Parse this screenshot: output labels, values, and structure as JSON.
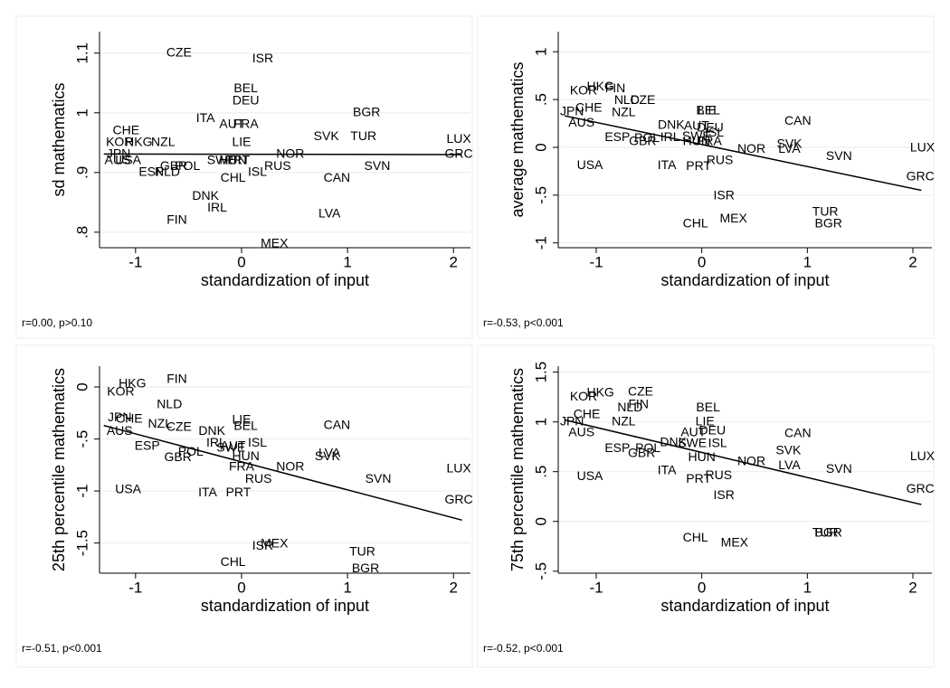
{
  "chart_data": [
    {
      "type": "scatter",
      "xlabel": "standardization of input",
      "ylabel": "sd mathematics",
      "note": "r=0.00, p>0.10",
      "color": "#000000",
      "grid": true,
      "xlim": [
        -1.34,
        2.16
      ],
      "ylim": [
        0.774,
        1.136
      ],
      "xticks": [
        -1,
        0,
        1,
        2
      ],
      "yticks": [
        {
          "value": 0.8,
          "label": ".8"
        },
        {
          "value": 0.9,
          "label": ".9"
        },
        1,
        1.1
      ],
      "labels": [
        "CZE",
        "ISR",
        "BEL",
        "DEU",
        "BGR",
        "ITA",
        "AUT",
        "FRA",
        "CHE",
        "SVK",
        "TUR",
        "LUX",
        "KOR",
        "HKG",
        "NZL",
        "LIE",
        "NOR",
        "GRC",
        "JPN",
        "AUS",
        "USA",
        "SWE",
        "HUN",
        "PRT",
        "RUS",
        "ESP",
        "NLD",
        "POL",
        "GBR",
        "ISL",
        "SVN",
        "CHL",
        "CAN",
        "DNK",
        "IRL",
        "LVA",
        "FIN",
        "MEX"
      ],
      "x": [
        -0.59,
        0.2,
        0.04,
        0.04,
        1.18,
        -0.34,
        -0.09,
        0.04,
        -1.09,
        0.8,
        1.15,
        2.05,
        -1.15,
        -0.97,
        -0.74,
        0,
        0.46,
        2.05,
        -1.16,
        -1.17,
        -1.07,
        -0.19,
        -0.08,
        -0.04,
        0.34,
        -0.85,
        -0.7,
        -0.51,
        -0.64,
        0.15,
        1.28,
        -0.08,
        0.9,
        -0.34,
        -0.23,
        0.83,
        -0.61,
        0.31
      ],
      "y": [
        1.1,
        1.09,
        1.04,
        1.02,
        1.0,
        0.99,
        0.98,
        0.98,
        0.97,
        0.96,
        0.96,
        0.955,
        0.95,
        0.95,
        0.95,
        0.95,
        0.93,
        0.93,
        0.93,
        0.92,
        0.92,
        0.92,
        0.92,
        0.92,
        0.91,
        0.9,
        0.9,
        0.91,
        0.91,
        0.9,
        0.91,
        0.89,
        0.89,
        0.86,
        0.84,
        0.83,
        0.82,
        0.78
      ],
      "fit_x": [
        -1.3,
        2.08
      ],
      "fit_y": [
        0.931,
        0.93
      ]
    },
    {
      "type": "scatter",
      "xlabel": "standardization of input",
      "ylabel": "average mathematics",
      "note": "r=-0.53, p<0.001",
      "color": "#000000",
      "grid": true,
      "xlim": [
        -1.36,
        2.18
      ],
      "ylim": [
        -1.05,
        1.21
      ],
      "xticks": [
        -1,
        0,
        1,
        2
      ],
      "yticks": [
        -1,
        {
          "value": -0.5,
          "label": "-.5"
        },
        0,
        {
          "value": 0.5,
          "label": ".5"
        },
        1
      ],
      "labels": [
        "HKG",
        "FIN",
        "KOR",
        "NLD",
        "CZE",
        "JPN",
        "CHE",
        "AUS",
        "NZL",
        "BEL",
        "LIE",
        "CAN",
        "DNK",
        "AUT",
        "DEU",
        "ISL",
        "ESP",
        "POL",
        "GBR",
        "IRL",
        "SWE",
        "HUN",
        "FRA",
        "NOR",
        "SVK",
        "LVA",
        "LUX",
        "SVN",
        "USA",
        "ITA",
        "PRT",
        "RUS",
        "GRC",
        "ISR",
        "TUR",
        "CHL",
        "MEX",
        "BGR"
      ],
      "x": [
        -0.96,
        -0.82,
        -1.12,
        -0.71,
        -0.56,
        -1.23,
        -1.07,
        -1.14,
        -0.74,
        0.06,
        0.05,
        0.91,
        -0.29,
        -0.05,
        0.08,
        0.12,
        -0.8,
        -0.52,
        -0.56,
        -0.3,
        -0.05,
        -0.05,
        0.07,
        0.47,
        0.83,
        0.83,
        2.09,
        1.3,
        -1.06,
        -0.33,
        -0.03,
        0.17,
        2.07,
        0.21,
        1.17,
        -0.06,
        0.3,
        1.2
      ],
      "y": [
        0.63,
        0.61,
        0.59,
        0.49,
        0.49,
        0.37,
        0.41,
        0.25,
        0.36,
        0.38,
        0.38,
        0.27,
        0.23,
        0.22,
        0.2,
        0.15,
        0.1,
        0.09,
        0.06,
        0.1,
        0.11,
        0.06,
        0.06,
        -0.02,
        0.03,
        -0.02,
        -0.01,
        -0.1,
        -0.19,
        -0.19,
        -0.2,
        -0.14,
        -0.31,
        -0.51,
        -0.68,
        -0.8,
        -0.75,
        -0.8
      ],
      "fit_x": [
        -1.3,
        2.08
      ],
      "fit_y": [
        0.33,
        -0.45
      ]
    },
    {
      "type": "scatter",
      "xlabel": "standardization of input",
      "ylabel": "25th percentile mathematics",
      "note": "r=-0.51, p<0.001",
      "color": "#000000",
      "grid": true,
      "xlim": [
        -1.34,
        2.16
      ],
      "ylim": [
        -1.79,
        0.2
      ],
      "xticks": [
        -1,
        0,
        1,
        2
      ],
      "yticks": [
        {
          "value": -1.5,
          "label": "-1.5"
        },
        -1,
        {
          "value": -0.5,
          "label": "-.5"
        },
        0
      ],
      "labels": [
        "FIN",
        "HKG",
        "KOR",
        "NLD",
        "JPN",
        "CHE",
        "NZL",
        "AUS",
        "CZE",
        "DNK",
        "LIE",
        "BEL",
        "CAN",
        "IRL",
        "ISL",
        "ESP",
        "AUT",
        "SWE",
        "POL",
        "HUN",
        "GBR",
        "SVK",
        "LVA",
        "NOR",
        "FRA",
        "RUS",
        "SVN",
        "LUX",
        "USA",
        "ITA",
        "PRT",
        "GRC",
        "ISR",
        "MEX",
        "TUR",
        "BGR",
        "CHL"
      ],
      "x": [
        -0.61,
        -1.03,
        -1.14,
        -0.68,
        -1.15,
        -1.06,
        -0.77,
        -1.15,
        -0.59,
        -0.28,
        0,
        0.04,
        0.9,
        -0.24,
        0.15,
        -0.89,
        -0.08,
        -0.1,
        -0.48,
        0.04,
        -0.6,
        0.81,
        0.83,
        0.46,
        0,
        0.16,
        1.29,
        2.05,
        -1.07,
        -0.32,
        -0.03,
        2.05,
        0.2,
        0.31,
        1.14,
        1.17,
        -0.08
      ],
      "y": [
        0.07,
        0.03,
        -0.05,
        -0.17,
        -0.3,
        -0.31,
        -0.36,
        -0.43,
        -0.39,
        -0.43,
        -0.32,
        -0.38,
        -0.37,
        -0.54,
        -0.54,
        -0.57,
        -0.57,
        -0.59,
        -0.63,
        -0.67,
        -0.68,
        -0.67,
        -0.64,
        -0.77,
        -0.77,
        -0.89,
        -0.89,
        -0.79,
        -0.99,
        -1.02,
        -1.02,
        -1.09,
        -1.53,
        -1.51,
        -1.59,
        -1.75,
        -1.69
      ],
      "fit_x": [
        -1.3,
        2.08
      ],
      "fit_y": [
        -0.37,
        -1.28
      ]
    },
    {
      "type": "scatter",
      "xlabel": "standardization of input",
      "ylabel": "75th percentile mathematics",
      "note": "r=-0.52, p<0.001",
      "color": "#000000",
      "grid": true,
      "xlim": [
        -1.36,
        2.18
      ],
      "ylim": [
        -0.52,
        1.56
      ],
      "xticks": [
        -1,
        0,
        1,
        2
      ],
      "yticks": [
        {
          "value": -0.5,
          "label": "-.5"
        },
        0,
        {
          "value": 0.5,
          "label": ".5"
        },
        1,
        1.5
      ],
      "labels": [
        "CZE",
        "HKG",
        "KOR",
        "FIN",
        "NLD",
        "BEL",
        "CHE",
        "LIE",
        "JPN",
        "NZL",
        "AUS",
        "CAN",
        "AUT",
        "DEU",
        "DNK",
        "SWE",
        "ISL",
        "ESP",
        "POL",
        "SVK",
        "GBR",
        "HUN",
        "LUX",
        "NOR",
        "LVA",
        "SVN",
        "ITA",
        "USA",
        "RUS",
        "PRT",
        "GRC",
        "ISR",
        "TUR",
        "BGR",
        "CHL",
        "MEX"
      ],
      "x": [
        -0.58,
        -0.96,
        -1.12,
        -0.6,
        -0.68,
        0.06,
        -1.09,
        0.03,
        -1.23,
        -0.74,
        -1.14,
        0.91,
        -0.08,
        0.1,
        -0.27,
        -0.09,
        0.15,
        -0.8,
        -0.51,
        0.82,
        -0.57,
        0,
        2.09,
        0.47,
        0.83,
        1.3,
        -0.33,
        -1.06,
        0.16,
        -0.03,
        2.07,
        0.21,
        1.17,
        1.2,
        -0.06,
        0.31
      ],
      "y": [
        1.3,
        1.29,
        1.25,
        1.17,
        1.14,
        1.14,
        1.07,
        1.0,
        1.0,
        1.0,
        0.89,
        0.88,
        0.89,
        0.91,
        0.79,
        0.78,
        0.78,
        0.73,
        0.73,
        0.71,
        0.68,
        0.64,
        0.65,
        0.6,
        0.56,
        0.52,
        0.51,
        0.45,
        0.46,
        0.42,
        0.32,
        0.26,
        -0.12,
        -0.12,
        -0.17,
        -0.22
      ],
      "fit_x": [
        -1.3,
        2.08
      ],
      "fit_y": [
        1.02,
        0.17
      ]
    }
  ]
}
